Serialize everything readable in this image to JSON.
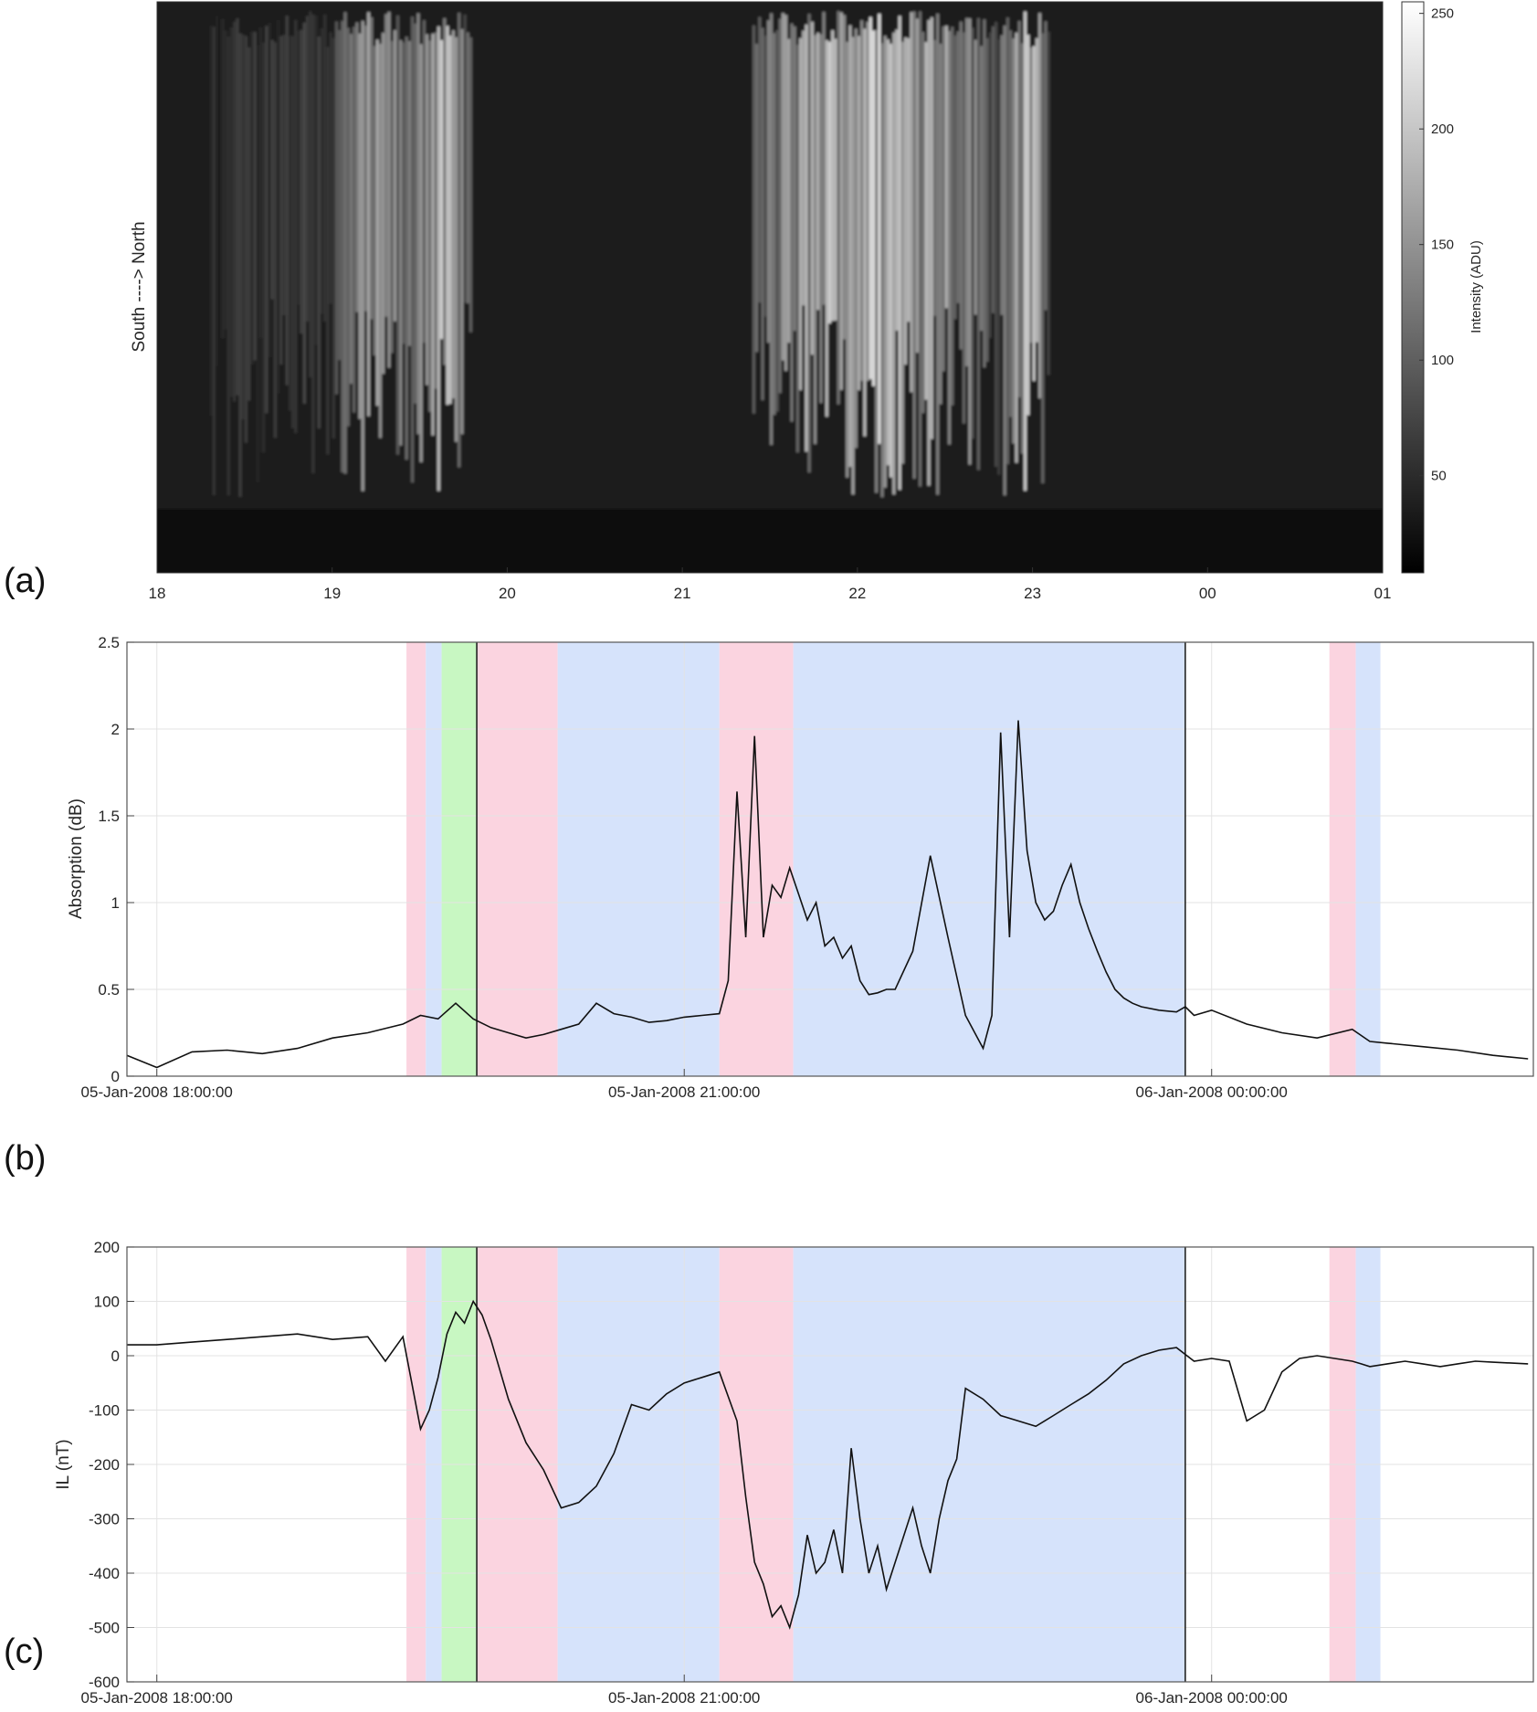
{
  "panel_labels": {
    "a": "(a)",
    "b": "(b)",
    "c": "(c)"
  },
  "colors": {
    "pink": "#fbd4e0",
    "blue": "#d6e3fb",
    "green": "#c8f7c2",
    "line": "#111111",
    "grid": "#e3e3e3"
  },
  "shading": [
    {
      "from": 19.42,
      "to": 19.53,
      "color": "pink"
    },
    {
      "from": 19.53,
      "to": 19.62,
      "color": "blue"
    },
    {
      "from": 19.62,
      "to": 19.82,
      "color": "green"
    },
    {
      "from": 19.82,
      "to": 20.28,
      "color": "pink"
    },
    {
      "from": 20.28,
      "to": 21.2,
      "color": "blue"
    },
    {
      "from": 21.2,
      "to": 21.62,
      "color": "pink"
    },
    {
      "from": 21.62,
      "to": 23.85,
      "color": "blue"
    },
    {
      "from": 24.67,
      "to": 24.82,
      "color": "pink"
    },
    {
      "from": 24.82,
      "to": 24.96,
      "color": "blue"
    }
  ],
  "vlines": [
    19.82,
    23.85
  ],
  "chart_data": [
    {
      "type": "heatmap",
      "panel": "a",
      "ylabel": "South  ---->  North",
      "x_ticks": [
        "18",
        "19",
        "20",
        "21",
        "22",
        "23",
        "00",
        "01"
      ],
      "xlim": [
        18,
        25
      ],
      "colorbar": {
        "label": "Intensity (ADU)",
        "ticks": [
          50,
          100,
          150,
          200,
          250
        ],
        "range": [
          8,
          255
        ],
        "colormap": "gray"
      },
      "bright_features": [
        {
          "start": 19.0,
          "end": 19.5,
          "level": 170
        },
        {
          "start": 19.4,
          "end": 19.8,
          "level": 210
        },
        {
          "start": 21.4,
          "end": 22.8,
          "level": 235
        },
        {
          "start": 22.8,
          "end": 23.1,
          "level": 220
        }
      ]
    },
    {
      "type": "line",
      "panel": "b",
      "ylabel": "Absorption (dB)",
      "ylim": [
        0,
        2.5
      ],
      "y_ticks": [
        "0",
        "0.5",
        "1",
        "1.5",
        "2",
        "2.5"
      ],
      "xlim": [
        17.83,
        25.83
      ],
      "x_tick_positions": [
        18,
        21,
        24
      ],
      "x_tick_labels": [
        "05-Jan-2008 18:00:00",
        "05-Jan-2008 21:00:00",
        "06-Jan-2008 00:00:00"
      ],
      "x": [
        17.83,
        18.0,
        18.2,
        18.4,
        18.6,
        18.8,
        19.0,
        19.2,
        19.4,
        19.5,
        19.6,
        19.7,
        19.8,
        19.9,
        20.0,
        20.1,
        20.2,
        20.3,
        20.4,
        20.5,
        20.6,
        20.7,
        20.8,
        20.9,
        21.0,
        21.1,
        21.2,
        21.25,
        21.3,
        21.35,
        21.4,
        21.45,
        21.5,
        21.55,
        21.6,
        21.65,
        21.7,
        21.75,
        21.8,
        21.85,
        21.9,
        21.95,
        22.0,
        22.05,
        22.1,
        22.15,
        22.2,
        22.3,
        22.4,
        22.5,
        22.6,
        22.7,
        22.75,
        22.8,
        22.85,
        22.9,
        22.95,
        23.0,
        23.05,
        23.1,
        23.15,
        23.2,
        23.25,
        23.3,
        23.35,
        23.4,
        23.45,
        23.5,
        23.55,
        23.6,
        23.7,
        23.8,
        23.85,
        23.9,
        24.0,
        24.2,
        24.4,
        24.6,
        24.8,
        24.9,
        25.0,
        25.2,
        25.4,
        25.6,
        25.8
      ],
      "y": [
        0.12,
        0.05,
        0.14,
        0.15,
        0.13,
        0.16,
        0.22,
        0.25,
        0.3,
        0.35,
        0.33,
        0.42,
        0.33,
        0.28,
        0.25,
        0.22,
        0.24,
        0.27,
        0.3,
        0.42,
        0.36,
        0.34,
        0.31,
        0.32,
        0.34,
        0.35,
        0.36,
        0.55,
        1.64,
        0.8,
        1.96,
        0.8,
        1.1,
        1.03,
        1.2,
        1.05,
        0.9,
        1.0,
        0.75,
        0.8,
        0.68,
        0.75,
        0.55,
        0.47,
        0.48,
        0.5,
        0.5,
        0.72,
        1.27,
        0.8,
        0.35,
        0.16,
        0.35,
        1.98,
        0.8,
        2.05,
        1.3,
        1.0,
        0.9,
        0.95,
        1.1,
        1.22,
        1.0,
        0.85,
        0.72,
        0.6,
        0.5,
        0.45,
        0.42,
        0.4,
        0.38,
        0.37,
        0.4,
        0.35,
        0.38,
        0.3,
        0.25,
        0.22,
        0.27,
        0.2,
        0.19,
        0.17,
        0.15,
        0.12,
        0.1
      ]
    },
    {
      "type": "line",
      "panel": "c",
      "ylabel": "IL (nT)",
      "ylim": [
        -600,
        200
      ],
      "y_ticks": [
        "-600",
        "-500",
        "-400",
        "-300",
        "-200",
        "-100",
        "0",
        "100",
        "200"
      ],
      "xlim": [
        17.83,
        25.83
      ],
      "x_tick_positions": [
        18,
        21,
        24
      ],
      "x_tick_labels": [
        "05-Jan-2008 18:00:00",
        "05-Jan-2008 21:00:00",
        "06-Jan-2008 00:00:00"
      ],
      "x": [
        17.83,
        18.0,
        18.2,
        18.4,
        18.6,
        18.8,
        19.0,
        19.2,
        19.3,
        19.4,
        19.45,
        19.5,
        19.55,
        19.6,
        19.65,
        19.7,
        19.75,
        19.8,
        19.85,
        19.9,
        20.0,
        20.1,
        20.2,
        20.3,
        20.4,
        20.5,
        20.6,
        20.7,
        20.8,
        20.9,
        21.0,
        21.1,
        21.2,
        21.3,
        21.35,
        21.4,
        21.45,
        21.5,
        21.55,
        21.6,
        21.65,
        21.7,
        21.75,
        21.8,
        21.85,
        21.9,
        21.95,
        22.0,
        22.05,
        22.1,
        22.15,
        22.2,
        22.25,
        22.3,
        22.35,
        22.4,
        22.45,
        22.5,
        22.55,
        22.6,
        22.7,
        22.8,
        22.9,
        23.0,
        23.1,
        23.2,
        23.3,
        23.4,
        23.5,
        23.6,
        23.7,
        23.8,
        23.9,
        24.0,
        24.1,
        24.2,
        24.3,
        24.4,
        24.5,
        24.6,
        24.7,
        24.8,
        24.85,
        24.9,
        25.0,
        25.1,
        25.2,
        25.3,
        25.4,
        25.5,
        25.6,
        25.8
      ],
      "y": [
        20,
        20,
        25,
        30,
        35,
        40,
        30,
        35,
        -10,
        35,
        -50,
        -135,
        -100,
        -40,
        40,
        80,
        60,
        100,
        75,
        30,
        -80,
        -160,
        -210,
        -280,
        -270,
        -240,
        -180,
        -90,
        -100,
        -70,
        -50,
        -40,
        -30,
        -120,
        -260,
        -380,
        -420,
        -480,
        -460,
        -500,
        -440,
        -330,
        -400,
        -380,
        -320,
        -400,
        -170,
        -300,
        -400,
        -350,
        -430,
        -380,
        -330,
        -280,
        -350,
        -400,
        -300,
        -230,
        -190,
        -60,
        -80,
        -110,
        -120,
        -130,
        -110,
        -90,
        -70,
        -45,
        -15,
        0,
        10,
        15,
        -10,
        -5,
        -10,
        -120,
        -100,
        -30,
        -5,
        0,
        -5,
        -10,
        -15,
        -20,
        -15,
        -10,
        -15,
        -20,
        -15,
        -10,
        -12,
        -15
      ]
    }
  ]
}
